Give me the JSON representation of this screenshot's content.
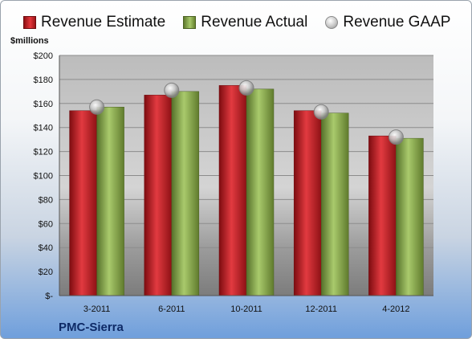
{
  "chart_data": {
    "type": "bar",
    "title": "",
    "ylabel": "$millions",
    "company": "PMC-Sierra",
    "categories": [
      "3-2011",
      "6-2011",
      "10-2011",
      "12-2011",
      "4-2012"
    ],
    "series": [
      {
        "name": "Revenue Estimate",
        "values": [
          154,
          167,
          175,
          154,
          133
        ],
        "color": "#c8262c"
      },
      {
        "name": "Revenue Actual",
        "values": [
          157,
          170,
          172,
          152,
          131
        ],
        "color": "#8fb04a"
      },
      {
        "name": "Revenue GAAP",
        "values": [
          157,
          171,
          173,
          153,
          132
        ],
        "color": "#c0c0c0"
      }
    ],
    "ylim": [
      0,
      200
    ],
    "yticks": [
      0,
      20,
      40,
      60,
      80,
      100,
      120,
      140,
      160,
      180,
      200
    ],
    "ytick_labels": [
      "$-",
      "$20",
      "$40",
      "$60",
      "$80",
      "$100",
      "$120",
      "$140",
      "$160",
      "$180",
      "$200"
    ],
    "grid": true,
    "legend_position": "top"
  }
}
